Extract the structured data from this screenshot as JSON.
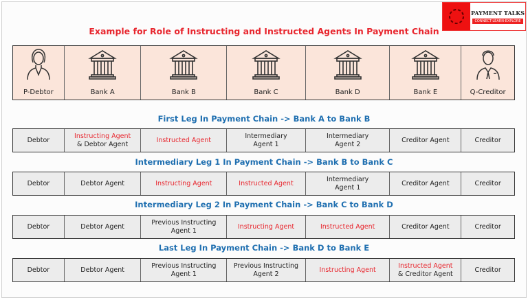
{
  "title": "Example for Role of Instructing and Instructed Agents In Payment Chain",
  "logo": {
    "name": "PAYMENT TALKS",
    "tagline": "CONNECT-LEARN-EXPLORE",
    "brand_color": "#ee1111"
  },
  "parties": [
    {
      "label": "P-Debtor",
      "icon": "woman-icon"
    },
    {
      "label": "Bank A",
      "icon": "bank-icon"
    },
    {
      "label": "Bank B",
      "icon": "bank-icon"
    },
    {
      "label": "Bank C",
      "icon": "bank-icon"
    },
    {
      "label": "Bank D",
      "icon": "bank-icon"
    },
    {
      "label": "Bank E",
      "icon": "bank-icon"
    },
    {
      "label": "Q-Creditor",
      "icon": "man-icon"
    }
  ],
  "legs": [
    {
      "title": "First Leg In Payment Chain -> Bank A to Bank B",
      "cells": [
        [
          {
            "t": "Debtor"
          }
        ],
        [
          {
            "t": "Instructing Agent",
            "red": true
          },
          {
            "t": "& Debtor Agent"
          }
        ],
        [
          {
            "t": "Instructed Agent",
            "red": true
          }
        ],
        [
          {
            "t": "Intermediary"
          },
          {
            "t": "Agent 1"
          }
        ],
        [
          {
            "t": "Intermediary"
          },
          {
            "t": "Agent 2"
          }
        ],
        [
          {
            "t": "Creditor Agent"
          }
        ],
        [
          {
            "t": "Creditor"
          }
        ]
      ]
    },
    {
      "title": "Intermediary Leg 1 In Payment Chain -> Bank B to Bank C",
      "cells": [
        [
          {
            "t": "Debtor"
          }
        ],
        [
          {
            "t": "Debtor Agent"
          }
        ],
        [
          {
            "t": "Instructing Agent",
            "red": true
          }
        ],
        [
          {
            "t": "Instructed Agent",
            "red": true
          }
        ],
        [
          {
            "t": "Intermediary"
          },
          {
            "t": "Agent 1"
          }
        ],
        [
          {
            "t": "Creditor Agent"
          }
        ],
        [
          {
            "t": "Creditor"
          }
        ]
      ]
    },
    {
      "title": "Intermediary Leg 2 In Payment Chain -> Bank C to Bank D",
      "cells": [
        [
          {
            "t": "Debtor"
          }
        ],
        [
          {
            "t": "Debtor Agent"
          }
        ],
        [
          {
            "t": "Previous Instructing"
          },
          {
            "t": "Agent 1"
          }
        ],
        [
          {
            "t": "Instructing Agent",
            "red": true
          }
        ],
        [
          {
            "t": "Instructed Agent",
            "red": true
          }
        ],
        [
          {
            "t": "Creditor Agent"
          }
        ],
        [
          {
            "t": "Creditor"
          }
        ]
      ]
    },
    {
      "title": "Last Leg In Payment Chain -> Bank D to Bank E",
      "cells": [
        [
          {
            "t": "Debtor"
          }
        ],
        [
          {
            "t": "Debtor Agent"
          }
        ],
        [
          {
            "t": "Previous Instructing"
          },
          {
            "t": "Agent 1"
          }
        ],
        [
          {
            "t": "Previous Instructing"
          },
          {
            "t": "Agent 2"
          }
        ],
        [
          {
            "t": "Instructing Agent",
            "red": true
          }
        ],
        [
          {
            "t": "Instructed Agent",
            "red": true
          },
          {
            "t": "& Creditor Agent"
          }
        ],
        [
          {
            "t": "Creditor"
          }
        ]
      ]
    }
  ]
}
